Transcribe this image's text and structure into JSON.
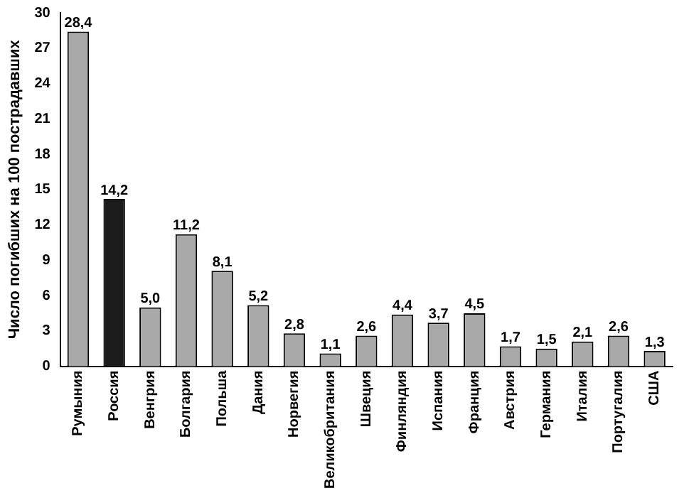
{
  "chart_data": {
    "type": "bar",
    "ylabel": "Число погибших на 100 пострадавших",
    "categories": [
      "Румыния",
      "Россия",
      "Венгрия",
      "Болгария",
      "Польша",
      "Дания",
      "Норвегия",
      "Великобритания",
      "Швеция",
      "Финляндия",
      "Испания",
      "Франция",
      "Австрия",
      "Германия",
      "Италия",
      "Португалия",
      "США"
    ],
    "values": [
      28.4,
      14.2,
      5.0,
      11.2,
      8.1,
      5.2,
      2.8,
      1.1,
      2.6,
      4.4,
      3.7,
      4.5,
      1.7,
      1.5,
      2.1,
      2.6,
      1.3
    ],
    "value_labels": [
      "28,4",
      "14,2",
      "5,0",
      "11,2",
      "8,1",
      "5,2",
      "2,8",
      "1,1",
      "2,6",
      "4,4",
      "3,7",
      "4,5",
      "1,7",
      "1,5",
      "2,1",
      "2,6",
      "1,3"
    ],
    "colors": [
      "#a9a9a9",
      "#1c1c1c",
      "#a9a9a9",
      "#a9a9a9",
      "#a9a9a9",
      "#a9a9a9",
      "#a9a9a9",
      "#a9a9a9",
      "#a9a9a9",
      "#a9a9a9",
      "#a9a9a9",
      "#a9a9a9",
      "#a9a9a9",
      "#a9a9a9",
      "#a9a9a9",
      "#a9a9a9",
      "#a9a9a9"
    ],
    "ylim": [
      0,
      30
    ],
    "yticks": [
      0,
      3,
      6,
      9,
      12,
      15,
      18,
      21,
      24,
      27,
      30
    ],
    "grid": false,
    "legend": false
  }
}
